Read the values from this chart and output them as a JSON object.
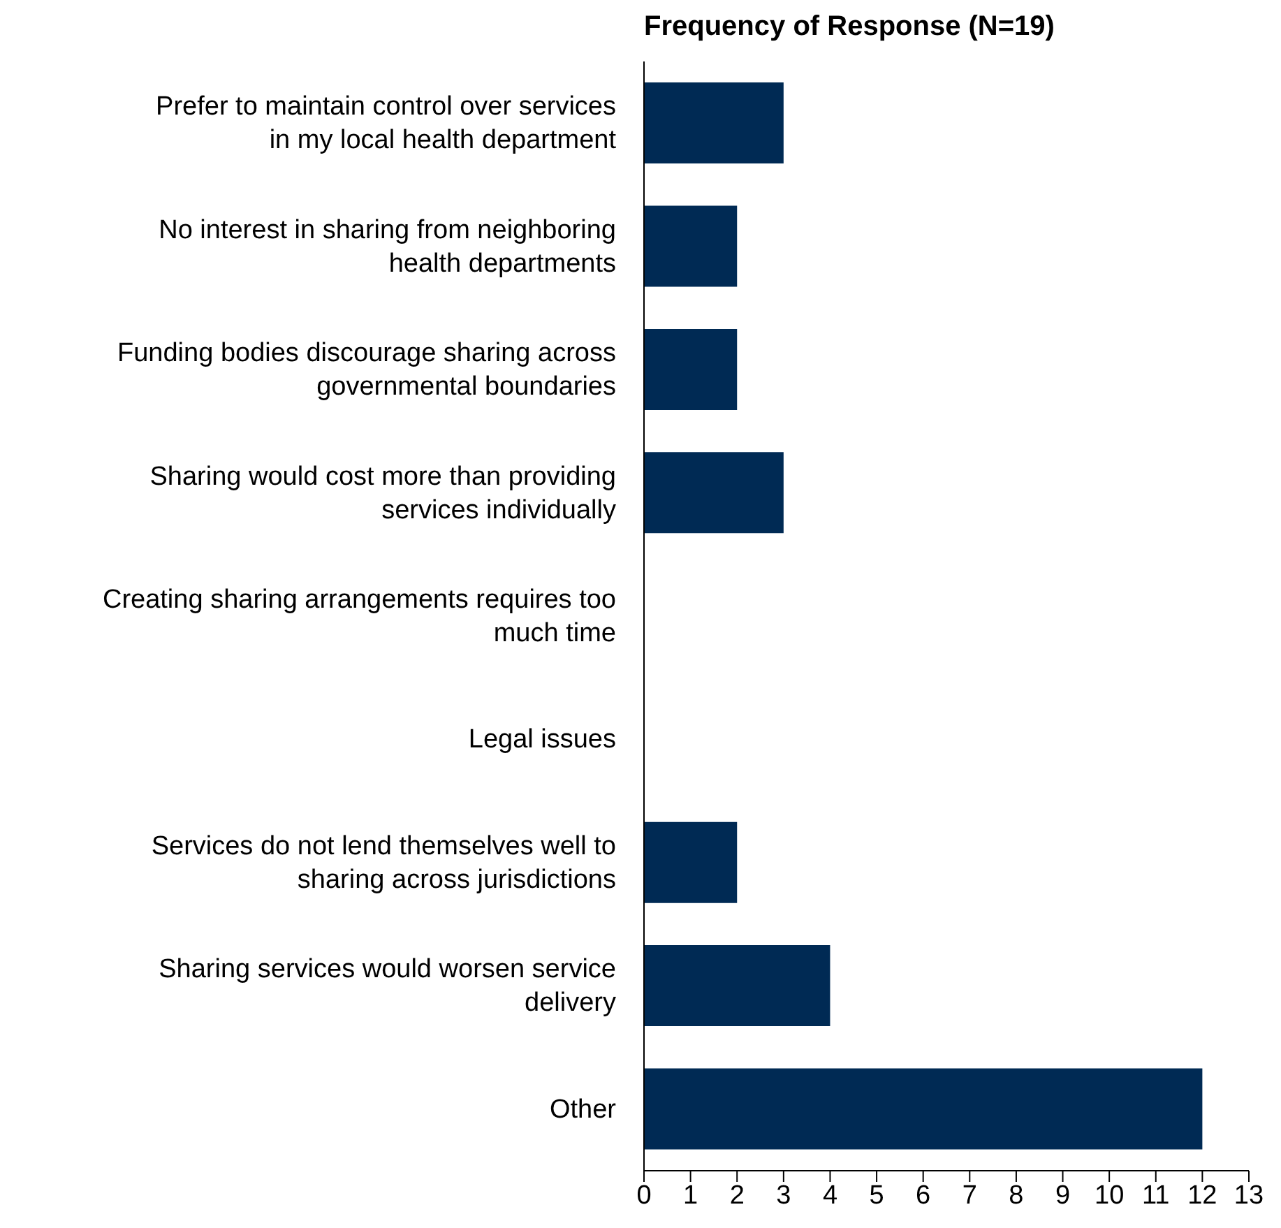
{
  "chart_data": {
    "type": "bar",
    "orientation": "horizontal",
    "title": "Frequency of Response (N=19)",
    "categories": [
      "Prefer to maintain control over services in my local health department",
      "No interest in sharing from neighboring health departments",
      "Funding bodies discourage sharing across governmental boundaries",
      "Sharing would cost more than providing services individually",
      "Creating sharing arrangements requires too much time",
      "Legal issues",
      "Services do not lend themselves well to sharing across jurisdictions",
      "Sharing services would worsen service delivery",
      "Other"
    ],
    "values": [
      3,
      2,
      2,
      3,
      0,
      0,
      2,
      4,
      12
    ],
    "color": "#002a54",
    "xlim": [
      0,
      13
    ],
    "xticks": [
      0,
      1,
      2,
      3,
      4,
      5,
      6,
      7,
      8,
      9,
      10,
      11,
      12,
      13
    ],
    "grid": false,
    "legend": false
  }
}
